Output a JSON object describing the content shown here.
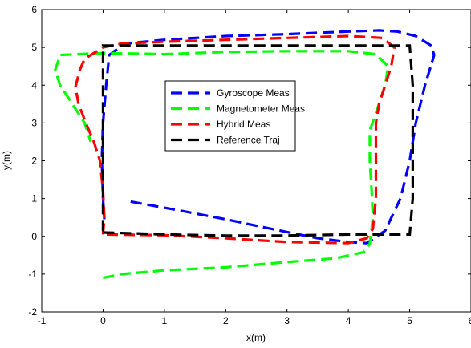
{
  "chart_data": {
    "type": "line",
    "title": "",
    "xlabel": "x(m)",
    "ylabel": "y(m)",
    "xlim": [
      -1,
      6
    ],
    "ylim": [
      -2,
      6
    ],
    "xticks": [
      "-1",
      "0",
      "1",
      "2",
      "3",
      "4",
      "5",
      "6"
    ],
    "yticks": [
      "-2",
      "-1",
      "0",
      "1",
      "2",
      "3",
      "4",
      "5",
      "6"
    ],
    "grid": false,
    "legend_position": "center",
    "series": [
      {
        "name": "Gyroscope Meas",
        "color": "#0000ff",
        "style": "dashed",
        "points": [
          [
            0.45,
            0.92
          ],
          [
            1.2,
            0.7
          ],
          [
            2.0,
            0.45
          ],
          [
            2.8,
            0.18
          ],
          [
            3.5,
            -0.05
          ],
          [
            4.0,
            -0.15
          ],
          [
            4.3,
            -0.18
          ],
          [
            4.6,
            0.15
          ],
          [
            4.85,
            1.0
          ],
          [
            5.0,
            2.0
          ],
          [
            5.1,
            3.0
          ],
          [
            5.25,
            4.0
          ],
          [
            5.4,
            4.8
          ],
          [
            5.35,
            5.05
          ],
          [
            5.1,
            5.3
          ],
          [
            4.8,
            5.42
          ],
          [
            4.5,
            5.45
          ],
          [
            4.0,
            5.42
          ],
          [
            3.0,
            5.35
          ],
          [
            2.0,
            5.3
          ],
          [
            1.0,
            5.2
          ],
          [
            0.35,
            5.1
          ],
          [
            0.1,
            4.8
          ],
          [
            0.05,
            4.0
          ],
          [
            0.0,
            3.0
          ],
          [
            -0.02,
            2.0
          ],
          [
            0.0,
            1.0
          ],
          [
            0.02,
            0.45
          ]
        ]
      },
      {
        "name": "Magnetometer Meas",
        "color": "#00ff00",
        "style": "dashed",
        "points": [
          [
            0.0,
            -1.1
          ],
          [
            0.3,
            -1.0
          ],
          [
            1.0,
            -0.9
          ],
          [
            2.0,
            -0.82
          ],
          [
            3.0,
            -0.68
          ],
          [
            3.8,
            -0.58
          ],
          [
            4.25,
            -0.42
          ],
          [
            4.35,
            -0.2
          ],
          [
            4.38,
            0.2
          ],
          [
            4.4,
            0.5
          ],
          [
            4.38,
            1.2
          ],
          [
            4.35,
            2.0
          ],
          [
            4.35,
            2.8
          ],
          [
            4.5,
            3.5
          ],
          [
            4.6,
            4.0
          ],
          [
            4.65,
            4.5
          ],
          [
            4.45,
            4.82
          ],
          [
            4.0,
            4.9
          ],
          [
            3.0,
            4.9
          ],
          [
            2.0,
            4.88
          ],
          [
            1.0,
            4.82
          ],
          [
            0.0,
            4.85
          ],
          [
            -0.7,
            4.8
          ],
          [
            -0.78,
            4.4
          ],
          [
            -0.7,
            4.0
          ],
          [
            -0.5,
            3.5
          ],
          [
            -0.3,
            3.0
          ],
          [
            -0.2,
            2.5
          ]
        ]
      },
      {
        "name": "Hybrid Meas",
        "color": "#ff0000",
        "style": "dashed",
        "points": [
          [
            0.0,
            0.05
          ],
          [
            0.02,
            0.5
          ],
          [
            0.0,
            1.2
          ],
          [
            -0.05,
            2.0
          ],
          [
            -0.15,
            2.5
          ],
          [
            -0.28,
            3.0
          ],
          [
            -0.4,
            3.5
          ],
          [
            -0.45,
            3.95
          ],
          [
            -0.38,
            4.4
          ],
          [
            -0.3,
            4.7
          ],
          [
            0.0,
            5.0
          ],
          [
            0.3,
            5.1
          ],
          [
            1.0,
            5.15
          ],
          [
            2.0,
            5.2
          ],
          [
            3.0,
            5.25
          ],
          [
            4.0,
            5.3
          ],
          [
            4.55,
            5.25
          ],
          [
            4.75,
            5.0
          ],
          [
            4.7,
            4.5
          ],
          [
            4.6,
            4.0
          ],
          [
            4.5,
            3.5
          ],
          [
            4.45,
            3.0
          ],
          [
            4.45,
            2.0
          ],
          [
            4.45,
            1.0
          ],
          [
            4.4,
            0.2
          ],
          [
            4.3,
            -0.05
          ],
          [
            4.0,
            -0.18
          ],
          [
            3.0,
            -0.15
          ],
          [
            2.0,
            -0.05
          ],
          [
            1.0,
            0.03
          ],
          [
            0.0,
            0.05
          ]
        ]
      },
      {
        "name": "Reference Traj",
        "color": "#000000",
        "style": "dashed",
        "points": [
          [
            0.0,
            0.1
          ],
          [
            0.5,
            0.08
          ],
          [
            1.0,
            0.05
          ],
          [
            2.0,
            0.02
          ],
          [
            3.0,
            0.02
          ],
          [
            4.0,
            0.05
          ],
          [
            5.0,
            0.05
          ],
          [
            5.05,
            1.0
          ],
          [
            5.05,
            2.0
          ],
          [
            5.05,
            3.0
          ],
          [
            5.05,
            4.0
          ],
          [
            5.0,
            5.05
          ],
          [
            4.0,
            5.05
          ],
          [
            3.0,
            5.05
          ],
          [
            2.0,
            5.05
          ],
          [
            1.0,
            5.05
          ],
          [
            0.0,
            5.05
          ],
          [
            0.0,
            4.0
          ],
          [
            0.0,
            3.0
          ],
          [
            0.0,
            2.0
          ],
          [
            0.0,
            1.0
          ],
          [
            0.0,
            0.1
          ]
        ]
      }
    ]
  }
}
